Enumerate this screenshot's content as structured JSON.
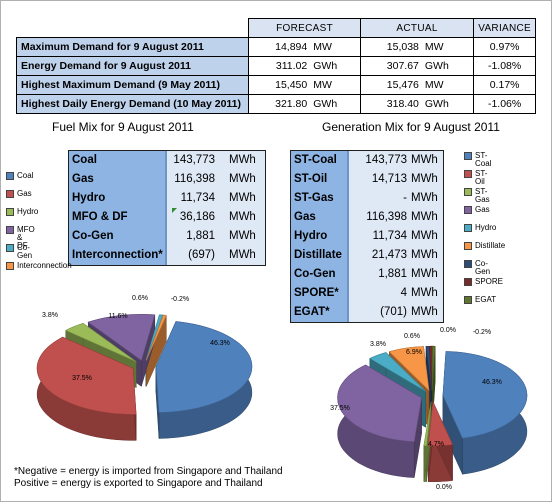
{
  "summary": {
    "headers": [
      "FORECAST",
      "ACTUAL",
      "VARIANCE"
    ],
    "rows": [
      {
        "label": "Maximum Demand for 9 August 2011",
        "forecast": "14,894",
        "forecast_unit": "MW",
        "actual": "15,038",
        "actual_unit": "MW",
        "variance": "0.97%"
      },
      {
        "label": "Energy Demand for 9 August 2011",
        "forecast": "311.02",
        "forecast_unit": "GWh",
        "actual": "307.67",
        "actual_unit": "GWh",
        "variance": "-1.08%"
      },
      {
        "label": "Highest Maximum Demand (9 May 2011)",
        "forecast": "15,450",
        "forecast_unit": "MW",
        "actual": "15,476",
        "actual_unit": "MW",
        "variance": "0.17%"
      },
      {
        "label": "Highest Daily Energy Demand (10 May 2011)",
        "forecast": "321.80",
        "forecast_unit": "GWh",
        "actual": "318.40",
        "actual_unit": "GWh",
        "variance": "-1.06%"
      }
    ]
  },
  "fuel": {
    "title": "Fuel Mix for 9 August 2011",
    "rows": [
      {
        "name": "Coal",
        "value": "143,773",
        "unit": "MWh"
      },
      {
        "name": "Gas",
        "value": "116,398",
        "unit": "MWh"
      },
      {
        "name": "Hydro",
        "value": "11,734",
        "unit": "MWh"
      },
      {
        "name": "MFO & DF",
        "value": "36,186",
        "unit": "MWh"
      },
      {
        "name": "Co-Gen",
        "value": "1,881",
        "unit": "MWh"
      },
      {
        "name": "Interconnection*",
        "value": "(697)",
        "unit": "MWh"
      }
    ],
    "legend": [
      "Coal",
      "Gas",
      "Hydro",
      "MFO & DF",
      "Co-Gen",
      "Interconnection"
    ]
  },
  "gen": {
    "title": "Generation Mix for 9 August 2011",
    "rows": [
      {
        "name": "ST-Coal",
        "value": "143,773",
        "unit": "MWh"
      },
      {
        "name": "ST-Oil",
        "value": "14,713",
        "unit": "MWh"
      },
      {
        "name": "ST-Gas",
        "value": "-",
        "unit": "MWh"
      },
      {
        "name": "Gas",
        "value": "116,398",
        "unit": "MWh"
      },
      {
        "name": "Hydro",
        "value": "11,734",
        "unit": "MWh"
      },
      {
        "name": "Distillate",
        "value": "21,473",
        "unit": "MWh"
      },
      {
        "name": "Co-Gen",
        "value": "1,881",
        "unit": "MWh"
      },
      {
        "name": "SPORE*",
        "value": "4",
        "unit": "MWh"
      },
      {
        "name": "EGAT*",
        "value": "(701)",
        "unit": "MWh"
      }
    ],
    "legend": [
      "ST-Coal",
      "ST-Oil",
      "ST-Gas",
      "Gas",
      "Hydro",
      "Distillate",
      "Co-Gen",
      "SPORE",
      "EGAT"
    ]
  },
  "chart_data": [
    {
      "type": "pie",
      "title": "Fuel Mix for 9 August 2011",
      "categories": [
        "Coal",
        "Gas",
        "Hydro",
        "MFO & DF",
        "Co-Gen",
        "Interconnection"
      ],
      "values": [
        46.3,
        37.5,
        3.8,
        11.6,
        0.6,
        -0.2
      ],
      "labels": [
        "46.3%",
        "37.5%",
        "3.8%",
        "11.6%",
        "0.6%",
        "-0.2%"
      ],
      "colors": [
        "#4f81bd",
        "#c0504d",
        "#9bbb59",
        "#8064a2",
        "#4bacc6",
        "#f79646"
      ],
      "legend": "left"
    },
    {
      "type": "pie",
      "title": "Generation Mix for 9 August 2011",
      "categories": [
        "ST-Coal",
        "ST-Oil",
        "ST-Gas",
        "Gas",
        "Hydro",
        "Distillate",
        "Co-Gen",
        "SPORE",
        "EGAT"
      ],
      "values": [
        46.3,
        4.7,
        0.0,
        37.5,
        3.8,
        6.9,
        0.6,
        0.0,
        -0.2
      ],
      "labels": [
        "46.3%",
        "4.7%",
        "0.0%",
        "37.5%",
        "3.8%",
        "6.9%",
        "0.6%",
        "0.0%",
        "-0.2%"
      ],
      "colors": [
        "#4f81bd",
        "#c0504d",
        "#9bbb59",
        "#8064a2",
        "#4bacc6",
        "#f79646",
        "#2c4d75",
        "#772c2a",
        "#5f7530"
      ],
      "legend": "right"
    }
  ],
  "note": {
    "line1": "*Negative = energy is imported from Singapore and Thailand",
    "line2": "Positive = energy is exported to Singapore and Thailand"
  }
}
